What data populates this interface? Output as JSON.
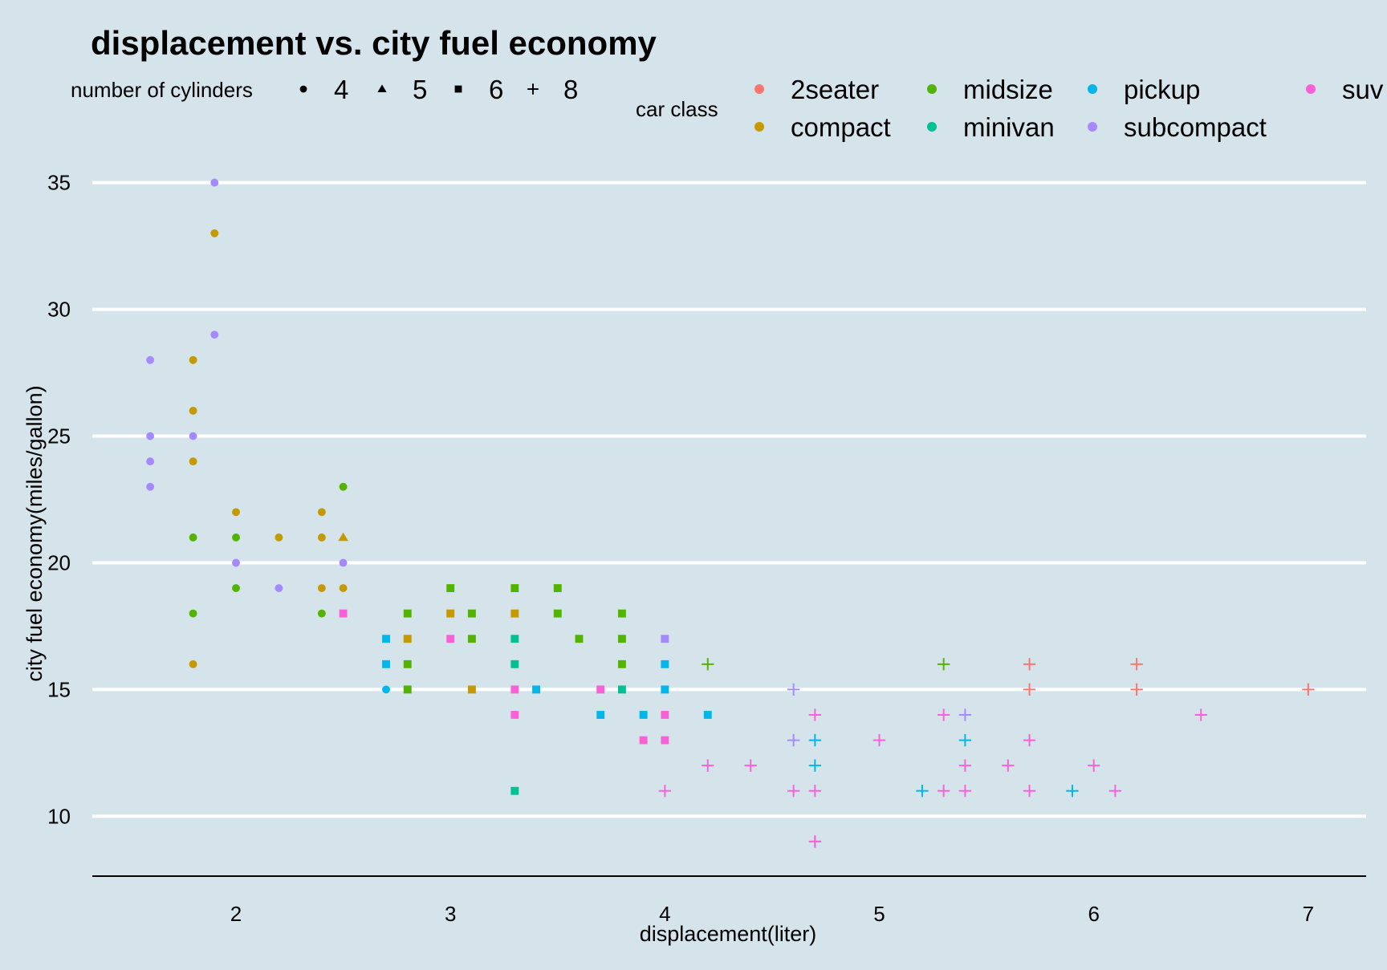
{
  "chart_data": {
    "type": "scatter",
    "title": "displacement vs. city fuel economy",
    "xlabel": "displacement(liter)",
    "ylabel": "city fuel economy(miles/gallon)",
    "xlim": [
      1.33,
      7.27
    ],
    "ylim": [
      7.7,
      35.4
    ],
    "xticks": [
      2,
      3,
      4,
      5,
      6,
      7
    ],
    "yticks": [
      10,
      15,
      20,
      25,
      30,
      35
    ],
    "grid": "horizontal major gridlines",
    "shape_legend": {
      "title": "number of cylinders",
      "placement": "top-left",
      "entries": [
        {
          "label": "4",
          "shape": "circle"
        },
        {
          "label": "5",
          "shape": "triangle"
        },
        {
          "label": "6",
          "shape": "square"
        },
        {
          "label": "8",
          "shape": "plus"
        }
      ]
    },
    "color_legend": {
      "title": "car class",
      "placement": "top-right",
      "entries": [
        {
          "label": "2seater",
          "color": "#F8766D"
        },
        {
          "label": "compact",
          "color": "#C49A00"
        },
        {
          "label": "midsize",
          "color": "#53B400"
        },
        {
          "label": "minivan",
          "color": "#00C094"
        },
        {
          "label": "pickup",
          "color": "#00B6EB"
        },
        {
          "label": "subcompact",
          "color": "#A58AFF"
        },
        {
          "label": "suv",
          "color": "#FB61D7"
        }
      ]
    },
    "series": [
      {
        "name": "2seater",
        "color": "#F8766D",
        "points": [
          {
            "x": 5.7,
            "y": 16,
            "cyl": "8"
          },
          {
            "x": 5.7,
            "y": 15,
            "cyl": "8"
          },
          {
            "x": 6.2,
            "y": 16,
            "cyl": "8"
          },
          {
            "x": 6.2,
            "y": 15,
            "cyl": "8"
          },
          {
            "x": 7.0,
            "y": 15,
            "cyl": "8"
          }
        ]
      },
      {
        "name": "compact",
        "color": "#C49A00",
        "points": [
          {
            "x": 1.8,
            "y": 28,
            "cyl": "4"
          },
          {
            "x": 1.8,
            "y": 26,
            "cyl": "4"
          },
          {
            "x": 1.8,
            "y": 24,
            "cyl": "4"
          },
          {
            "x": 1.8,
            "y": 16,
            "cyl": "4"
          },
          {
            "x": 1.9,
            "y": 33,
            "cyl": "4"
          },
          {
            "x": 2.0,
            "y": 22,
            "cyl": "4"
          },
          {
            "x": 2.2,
            "y": 21,
            "cyl": "4"
          },
          {
            "x": 2.4,
            "y": 22,
            "cyl": "4"
          },
          {
            "x": 2.4,
            "y": 21,
            "cyl": "4"
          },
          {
            "x": 2.4,
            "y": 19,
            "cyl": "4"
          },
          {
            "x": 2.5,
            "y": 19,
            "cyl": "4"
          },
          {
            "x": 2.5,
            "y": 21,
            "cyl": "5"
          },
          {
            "x": 2.8,
            "y": 17,
            "cyl": "6"
          },
          {
            "x": 3.0,
            "y": 18,
            "cyl": "6"
          },
          {
            "x": 3.1,
            "y": 15,
            "cyl": "6"
          },
          {
            "x": 3.3,
            "y": 18,
            "cyl": "6"
          }
        ]
      },
      {
        "name": "midsize",
        "color": "#53B400",
        "points": [
          {
            "x": 1.8,
            "y": 21,
            "cyl": "4"
          },
          {
            "x": 1.8,
            "y": 18,
            "cyl": "4"
          },
          {
            "x": 2.0,
            "y": 21,
            "cyl": "4"
          },
          {
            "x": 2.0,
            "y": 19,
            "cyl": "4"
          },
          {
            "x": 2.4,
            "y": 18,
            "cyl": "4"
          },
          {
            "x": 2.5,
            "y": 23,
            "cyl": "4"
          },
          {
            "x": 2.8,
            "y": 18,
            "cyl": "6"
          },
          {
            "x": 2.8,
            "y": 16,
            "cyl": "6"
          },
          {
            "x": 2.8,
            "y": 15,
            "cyl": "6"
          },
          {
            "x": 3.0,
            "y": 19,
            "cyl": "6"
          },
          {
            "x": 3.1,
            "y": 18,
            "cyl": "6"
          },
          {
            "x": 3.1,
            "y": 17,
            "cyl": "6"
          },
          {
            "x": 3.3,
            "y": 19,
            "cyl": "6"
          },
          {
            "x": 3.5,
            "y": 19,
            "cyl": "6"
          },
          {
            "x": 3.5,
            "y": 18,
            "cyl": "6"
          },
          {
            "x": 3.6,
            "y": 17,
            "cyl": "6"
          },
          {
            "x": 3.8,
            "y": 18,
            "cyl": "6"
          },
          {
            "x": 3.8,
            "y": 17,
            "cyl": "6"
          },
          {
            "x": 3.8,
            "y": 16,
            "cyl": "6"
          },
          {
            "x": 4.2,
            "y": 16,
            "cyl": "8"
          },
          {
            "x": 5.3,
            "y": 16,
            "cyl": "8"
          }
        ]
      },
      {
        "name": "minivan",
        "color": "#00C094",
        "points": [
          {
            "x": 3.3,
            "y": 17,
            "cyl": "6"
          },
          {
            "x": 3.3,
            "y": 16,
            "cyl": "6"
          },
          {
            "x": 3.3,
            "y": 11,
            "cyl": "6"
          },
          {
            "x": 3.8,
            "y": 15,
            "cyl": "6"
          }
        ]
      },
      {
        "name": "pickup",
        "color": "#00B6EB",
        "points": [
          {
            "x": 2.7,
            "y": 15,
            "cyl": "4"
          },
          {
            "x": 2.7,
            "y": 17,
            "cyl": "6"
          },
          {
            "x": 2.7,
            "y": 16,
            "cyl": "6"
          },
          {
            "x": 3.4,
            "y": 15,
            "cyl": "6"
          },
          {
            "x": 3.7,
            "y": 14,
            "cyl": "6"
          },
          {
            "x": 3.9,
            "y": 14,
            "cyl": "6"
          },
          {
            "x": 4.0,
            "y": 16,
            "cyl": "6"
          },
          {
            "x": 4.0,
            "y": 15,
            "cyl": "6"
          },
          {
            "x": 4.2,
            "y": 14,
            "cyl": "6"
          },
          {
            "x": 4.7,
            "y": 13,
            "cyl": "8"
          },
          {
            "x": 4.7,
            "y": 12,
            "cyl": "8"
          },
          {
            "x": 5.2,
            "y": 11,
            "cyl": "8"
          },
          {
            "x": 5.4,
            "y": 13,
            "cyl": "8"
          },
          {
            "x": 5.9,
            "y": 11,
            "cyl": "8"
          }
        ]
      },
      {
        "name": "subcompact",
        "color": "#A58AFF",
        "points": [
          {
            "x": 1.6,
            "y": 28,
            "cyl": "4"
          },
          {
            "x": 1.6,
            "y": 25,
            "cyl": "4"
          },
          {
            "x": 1.6,
            "y": 24,
            "cyl": "4"
          },
          {
            "x": 1.6,
            "y": 23,
            "cyl": "4"
          },
          {
            "x": 1.8,
            "y": 25,
            "cyl": "4"
          },
          {
            "x": 1.9,
            "y": 35,
            "cyl": "4"
          },
          {
            "x": 1.9,
            "y": 29,
            "cyl": "4"
          },
          {
            "x": 2.0,
            "y": 20,
            "cyl": "4"
          },
          {
            "x": 2.2,
            "y": 19,
            "cyl": "4"
          },
          {
            "x": 2.5,
            "y": 20,
            "cyl": "4"
          },
          {
            "x": 4.0,
            "y": 17,
            "cyl": "6"
          },
          {
            "x": 4.6,
            "y": 15,
            "cyl": "8"
          },
          {
            "x": 4.6,
            "y": 13,
            "cyl": "8"
          },
          {
            "x": 5.4,
            "y": 14,
            "cyl": "8"
          },
          {
            "x": 4.7,
            "y": 9,
            "cyl": "8"
          }
        ]
      },
      {
        "name": "suv",
        "color": "#FB61D7",
        "points": [
          {
            "x": 2.5,
            "y": 18,
            "cyl": "6"
          },
          {
            "x": 3.0,
            "y": 17,
            "cyl": "6"
          },
          {
            "x": 3.3,
            "y": 15,
            "cyl": "6"
          },
          {
            "x": 3.3,
            "y": 14,
            "cyl": "6"
          },
          {
            "x": 3.7,
            "y": 15,
            "cyl": "6"
          },
          {
            "x": 3.9,
            "y": 13,
            "cyl": "6"
          },
          {
            "x": 4.0,
            "y": 14,
            "cyl": "6"
          },
          {
            "x": 4.0,
            "y": 13,
            "cyl": "6"
          },
          {
            "x": 4.0,
            "y": 11,
            "cyl": "8"
          },
          {
            "x": 4.2,
            "y": 12,
            "cyl": "8"
          },
          {
            "x": 4.4,
            "y": 12,
            "cyl": "8"
          },
          {
            "x": 4.6,
            "y": 11,
            "cyl": "8"
          },
          {
            "x": 4.7,
            "y": 14,
            "cyl": "8"
          },
          {
            "x": 4.7,
            "y": 11,
            "cyl": "8"
          },
          {
            "x": 4.7,
            "y": 9,
            "cyl": "8"
          },
          {
            "x": 5.0,
            "y": 13,
            "cyl": "8"
          },
          {
            "x": 5.3,
            "y": 14,
            "cyl": "8"
          },
          {
            "x": 5.3,
            "y": 11,
            "cyl": "8"
          },
          {
            "x": 5.4,
            "y": 12,
            "cyl": "8"
          },
          {
            "x": 5.4,
            "y": 11,
            "cyl": "8"
          },
          {
            "x": 5.6,
            "y": 12,
            "cyl": "8"
          },
          {
            "x": 5.7,
            "y": 13,
            "cyl": "8"
          },
          {
            "x": 5.7,
            "y": 11,
            "cyl": "8"
          },
          {
            "x": 6.0,
            "y": 12,
            "cyl": "8"
          },
          {
            "x": 6.1,
            "y": 11,
            "cyl": "8"
          },
          {
            "x": 6.5,
            "y": 14,
            "cyl": "8"
          }
        ]
      }
    ]
  }
}
